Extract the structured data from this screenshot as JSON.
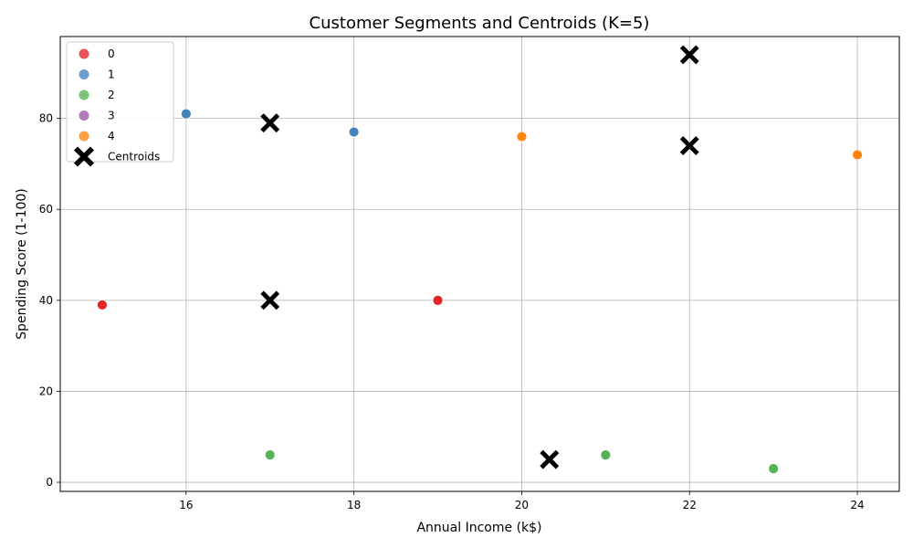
{
  "chart_data": {
    "type": "scatter",
    "title": "Customer Segments and Centroids (K=5)",
    "xlabel": "Annual Income (k$)",
    "ylabel": "Spending Score (1-100)",
    "xlim": [
      14.5,
      24.5
    ],
    "ylim": [
      -2,
      98
    ],
    "xticks": [
      16,
      18,
      20,
      22,
      24
    ],
    "yticks": [
      0,
      20,
      40,
      60,
      80
    ],
    "grid": true,
    "legend_position": "top-left",
    "series": [
      {
        "name": "0",
        "color": "#e41a1c",
        "points": [
          [
            15,
            39
          ],
          [
            19,
            40
          ]
        ]
      },
      {
        "name": "1",
        "color": "#377eb8",
        "points": [
          [
            16,
            81
          ],
          [
            18,
            77
          ]
        ]
      },
      {
        "name": "2",
        "color": "#4daf4a",
        "points": [
          [
            17,
            6
          ],
          [
            21,
            6
          ],
          [
            23,
            3
          ]
        ]
      },
      {
        "name": "3",
        "color": "#984ea3",
        "points": []
      },
      {
        "name": "4",
        "color": "#ff7f00",
        "points": [
          [
            20,
            76
          ],
          [
            24,
            72
          ]
        ]
      }
    ],
    "centroids": {
      "name": "Centroids",
      "color": "#000000",
      "marker": "X",
      "points": [
        [
          22,
          94
        ],
        [
          17,
          79
        ],
        [
          22,
          74
        ],
        [
          17,
          40
        ],
        [
          20.33,
          5
        ]
      ]
    }
  }
}
